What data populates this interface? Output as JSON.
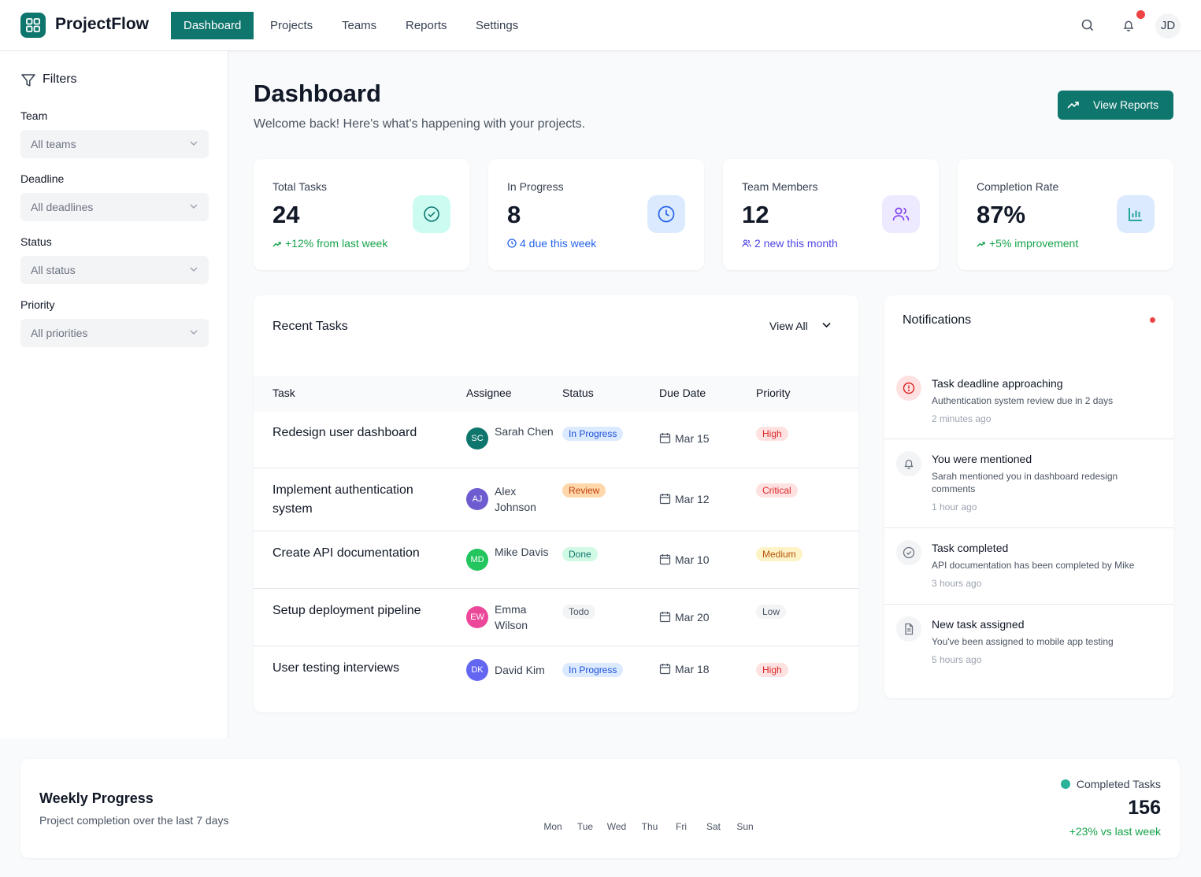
{
  "app": {
    "name": "ProjectFlow",
    "user_initials": "JD"
  },
  "nav": [
    "Dashboard",
    "Projects",
    "Teams",
    "Reports",
    "Settings"
  ],
  "filters": {
    "title": "Filters",
    "groups": [
      {
        "label": "Team",
        "value": "All teams"
      },
      {
        "label": "Deadline",
        "value": "All deadlines"
      },
      {
        "label": "Status",
        "value": "All status"
      },
      {
        "label": "Priority",
        "value": "All priorities"
      }
    ]
  },
  "header": {
    "title": "Dashboard",
    "subtitle": "Welcome back! Here's what's happening with your projects.",
    "button": "View Reports"
  },
  "stats": [
    {
      "label": "Total Tasks",
      "value": "24",
      "sub": "+12% from last week",
      "sub_color": "#16a34a",
      "icon": "check-circle-icon",
      "bg": "#ccfbf1",
      "fg": "#0f766e"
    },
    {
      "label": "In Progress",
      "value": "8",
      "sub": "4 due this week",
      "sub_color": "#2563eb",
      "icon": "clock-icon",
      "bg": "#dbeafe",
      "fg": "#2563eb"
    },
    {
      "label": "Team Members",
      "value": "12",
      "sub": "2 new this month",
      "sub_color": "#4f46e5",
      "icon": "users-icon",
      "bg": "#ede9fe",
      "fg": "#7c3aed"
    },
    {
      "label": "Completion Rate",
      "value": "87%",
      "sub": "+5% improvement",
      "sub_color": "#16a34a",
      "icon": "bar-chart-icon",
      "bg": "#dbeafe",
      "fg": "#0f9f8a"
    }
  ],
  "tasks": {
    "title": "Recent Tasks",
    "view_all": "View All",
    "columns": [
      "Task",
      "Assignee",
      "Status",
      "Due Date",
      "Priority"
    ],
    "rows": [
      {
        "name": "Redesign user dashboard",
        "initials": "SC",
        "assignee": "Sarah Chen",
        "avatar_color": "#0f766e",
        "status": "In Progress",
        "due": "Mar 15",
        "priority": "High"
      },
      {
        "name": "Implement authentication system",
        "initials": "AJ",
        "assignee": "Alex Johnson",
        "avatar_color": "#6d5bd0",
        "status": "Review",
        "due": "Mar 12",
        "priority": "Critical"
      },
      {
        "name": "Create API documentation",
        "initials": "MD",
        "assignee": "Mike Davis",
        "avatar_color": "#22c55e",
        "status": "Done",
        "due": "Mar 10",
        "priority": "Medium"
      },
      {
        "name": "Setup deployment pipeline",
        "initials": "EW",
        "assignee": "Emma Wilson",
        "avatar_color": "#ec4899",
        "status": "Todo",
        "due": "Mar 20",
        "priority": "Low"
      },
      {
        "name": "User testing interviews",
        "initials": "DK",
        "assignee": "David Kim",
        "avatar_color": "#6366f1",
        "status": "In Progress",
        "due": "Mar 18",
        "priority": "High"
      }
    ]
  },
  "notifications": {
    "title": "Notifications",
    "items": [
      {
        "icon": "alert-circle-icon",
        "title": "Task deadline approaching",
        "desc": "Authentication system review due in 2 days",
        "time": "2 minutes ago"
      },
      {
        "icon": "bell-icon",
        "title": "You were mentioned",
        "desc": "Sarah mentioned you in dashboard redesign comments",
        "time": "1 hour ago"
      },
      {
        "icon": "check-circle-icon",
        "title": "Task completed",
        "desc": "API documentation has been completed by Mike",
        "time": "3 hours ago"
      },
      {
        "icon": "file-icon",
        "title": "New task assigned",
        "desc": "You've been assigned to mobile app testing",
        "time": "5 hours ago"
      }
    ]
  },
  "weekly": {
    "title": "Weekly Progress",
    "subtitle": "Project completion over the last 7 days",
    "days": [
      "Mon",
      "Tue",
      "Wed",
      "Thu",
      "Fri",
      "Sat",
      "Sun"
    ],
    "legend": "Completed Tasks",
    "value": "156",
    "change": "+23% vs last week"
  }
}
